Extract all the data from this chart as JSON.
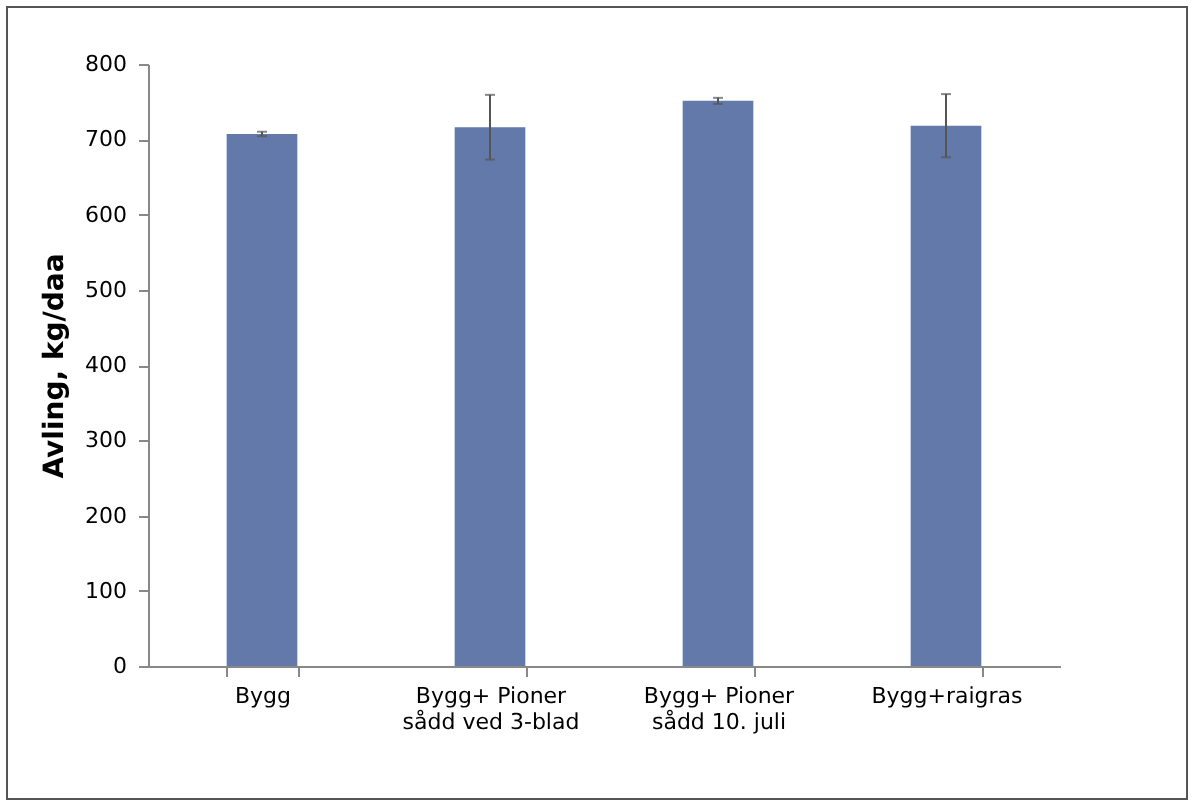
{
  "chart_data": {
    "type": "bar",
    "ylabel": "Avling, kg/daa",
    "categories": [
      "Bygg",
      "Bygg+ Pioner sådd ved 3-blad",
      "Bygg+ Pioner sådd 10. juli",
      "Bygg+raigras"
    ],
    "values": [
      707,
      716,
      751,
      718
    ],
    "errors": [
      3,
      43,
      4,
      42
    ],
    "color": "#6279aa",
    "ylim": [
      0,
      800
    ],
    "yticks": [
      0,
      100,
      200,
      300,
      400,
      500,
      600,
      700,
      800
    ],
    "grid": false
  }
}
